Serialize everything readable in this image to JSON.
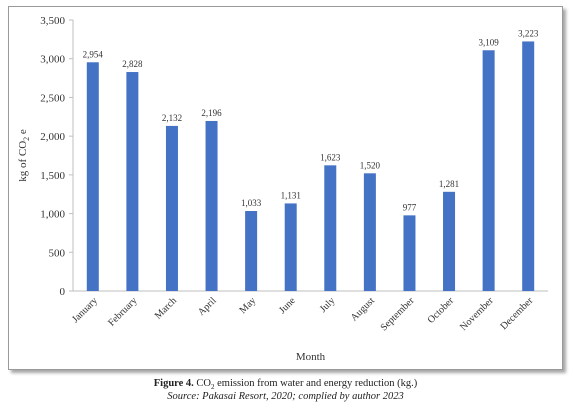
{
  "chart_data": {
    "type": "bar",
    "categories": [
      "January",
      "February",
      "March",
      "April",
      "May",
      "June",
      "July",
      "August",
      "September",
      "October",
      "November",
      "December"
    ],
    "values": [
      2954,
      2828,
      2132,
      2196,
      1033,
      1131,
      1623,
      1520,
      977,
      1281,
      3109,
      3223
    ],
    "value_labels": [
      "2,954",
      "2,828",
      "2,132",
      "2,196",
      "1,033",
      "1,131",
      "1,623",
      "1,520",
      "977",
      "1,281",
      "3,109",
      "3,223"
    ],
    "xlabel": "Month",
    "ylabel_main": "kg of CO",
    "ylabel_sub": "2",
    "ylabel_tail": " e",
    "ylim": [
      0,
      3500
    ],
    "yticks": [
      0,
      500,
      1000,
      1500,
      2000,
      2500,
      3000,
      3500
    ],
    "ytick_labels": [
      "0",
      "500",
      "1,000",
      "1,500",
      "2,000",
      "2,500",
      "3,000",
      "3,500"
    ],
    "grid": false,
    "bar_color": "#4472c4"
  },
  "caption": {
    "figure_label": "Figure 4.",
    "title_pre": " CO",
    "title_sub": "2",
    "title_post": " emission from water and energy reduction (kg.)",
    "source": "Source: Pakasai Resort, 2020; complied by author 2023"
  }
}
